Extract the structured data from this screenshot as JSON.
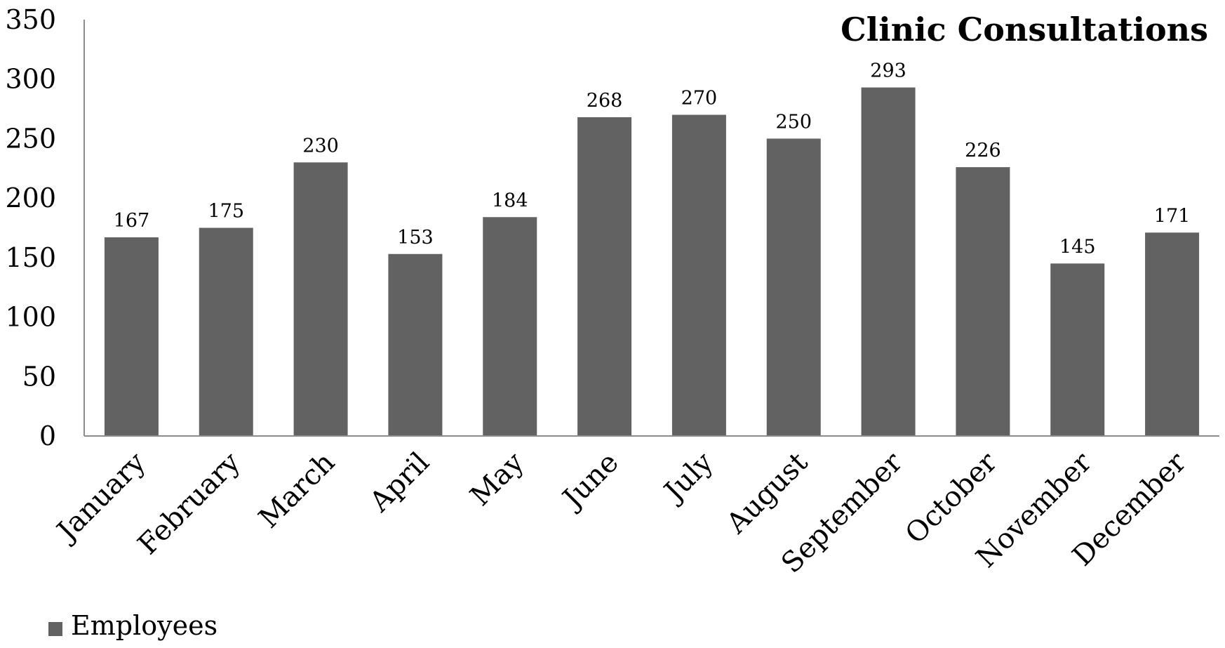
{
  "chart_data": {
    "type": "bar",
    "title": "Clinic Consultations",
    "xlabel": "",
    "ylabel": "",
    "categories": [
      "January",
      "February",
      "March",
      "April",
      "May",
      "June",
      "July",
      "August",
      "September",
      "October",
      "November",
      "December"
    ],
    "series": [
      {
        "name": "Employees",
        "values": [
          167,
          175,
          230,
          153,
          184,
          268,
          270,
          250,
          293,
          226,
          145,
          171
        ],
        "color": "#626262"
      }
    ],
    "ylim": [
      0,
      350
    ],
    "yticks": [
      "0",
      "50",
      "100",
      "150",
      "200",
      "250",
      "300",
      "350"
    ],
    "grid": false,
    "data_labels": true,
    "legend_position": "bottom-left"
  }
}
